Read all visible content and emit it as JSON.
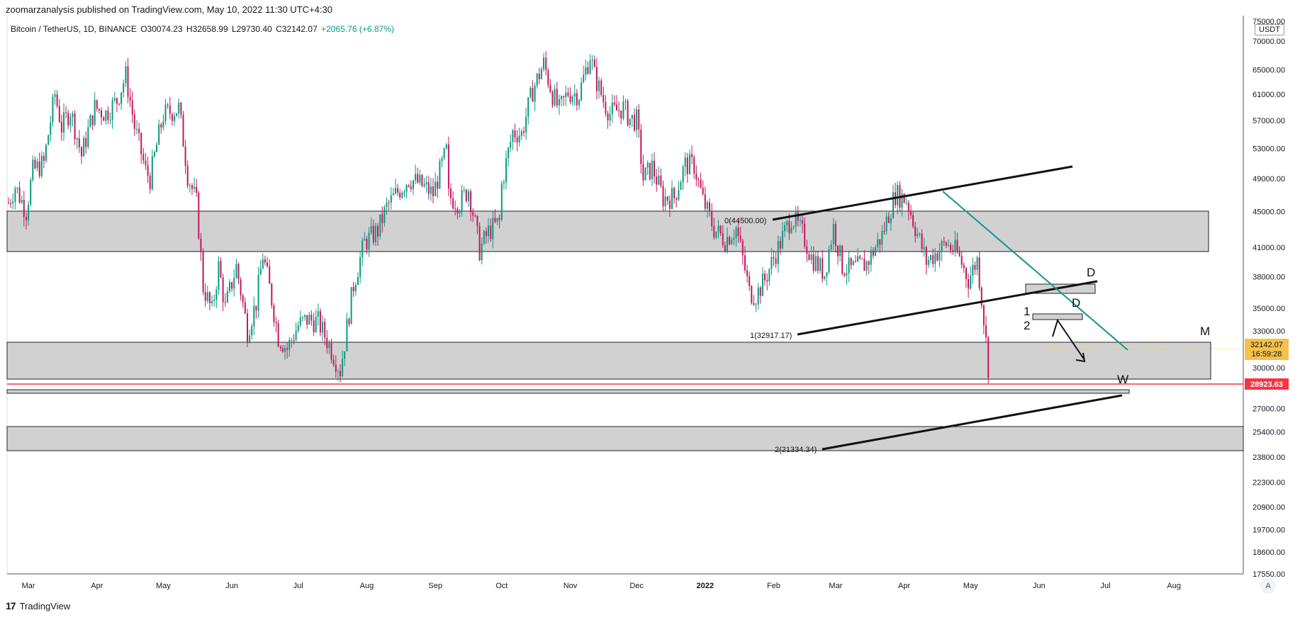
{
  "header": {
    "publisher": "zoomarzanalysis published on TradingView.com, May 10, 2022 11:30 UTC+4:30"
  },
  "legend": {
    "symbol": "Bitcoin / TetherUS, 1D, BINANCE",
    "open": "O30074.23",
    "high": "H32658.99",
    "low": "L29730.40",
    "close": "C32142.07",
    "change": "+2065.76 (+6.87%)"
  },
  "footer": {
    "brand": "TradingView",
    "logo_text": "17"
  },
  "price_axis": {
    "unit": "USDT",
    "scale_button": "A",
    "top_label": "75000.00",
    "bottom_label": "17550.00",
    "ticks": [
      "70000.00",
      "65000.00",
      "61000.00",
      "57000.00",
      "53000.00",
      "49000.00",
      "45000.00",
      "41000.00",
      "38000.00",
      "35000.00",
      "33000.00",
      "30000.00",
      "27000.00",
      "25400.00",
      "23800.00",
      "22300.00",
      "20900.00",
      "19700.00",
      "18600.00"
    ],
    "current_price": "32142.07",
    "countdown": "16:59:28",
    "line_price": "28923.63"
  },
  "colors": {
    "up": "#089981",
    "down": "#c2185b",
    "zone_fill": "#d1d1d1",
    "red_line": "#f23645",
    "trend_teal": "#13988a",
    "price_tag": "#f5c14a"
  },
  "chart_data": {
    "type": "candlestick",
    "x_labels": [
      "Mar",
      "Apr",
      "May",
      "Jun",
      "Jul",
      "Aug",
      "Sep",
      "Oct",
      "Nov",
      "Dec",
      "2022",
      "Feb",
      "Mar",
      "Apr",
      "May",
      "Jun",
      "Jul",
      "Aug"
    ],
    "y_scale": "log",
    "ylim": [
      17550,
      75000
    ],
    "close_path": [
      [
        "2021-02-20",
        46000
      ],
      [
        "2021-02-23",
        48000
      ],
      [
        "2021-02-28",
        45000
      ],
      [
        "2021-03-03",
        50000
      ],
      [
        "2021-03-08",
        51000
      ],
      [
        "2021-03-13",
        61000
      ],
      [
        "2021-03-16",
        56000
      ],
      [
        "2021-03-20",
        58500
      ],
      [
        "2021-03-25",
        52000
      ],
      [
        "2021-03-31",
        58900
      ],
      [
        "2021-04-05",
        58000
      ],
      [
        "2021-04-10",
        60000
      ],
      [
        "2021-04-14",
        64000
      ],
      [
        "2021-04-18",
        56000
      ],
      [
        "2021-04-23",
        50000
      ],
      [
        "2021-04-25",
        49000
      ],
      [
        "2021-05-01",
        57800
      ],
      [
        "2021-05-08",
        58800
      ],
      [
        "2021-05-12",
        49500
      ],
      [
        "2021-05-16",
        46000
      ],
      [
        "2021-05-19",
        37000
      ],
      [
        "2021-05-23",
        34700
      ],
      [
        "2021-05-26",
        39000
      ],
      [
        "2021-05-29",
        35000
      ],
      [
        "2021-06-03",
        39000
      ],
      [
        "2021-06-08",
        33000
      ],
      [
        "2021-06-12",
        35500
      ],
      [
        "2021-06-15",
        40200
      ],
      [
        "2021-06-22",
        32500
      ],
      [
        "2021-06-26",
        31500
      ],
      [
        "2021-07-01",
        33500
      ],
      [
        "2021-07-05",
        34000
      ],
      [
        "2021-07-10",
        33800
      ],
      [
        "2021-07-15",
        31800
      ],
      [
        "2021-07-20",
        29800
      ],
      [
        "2021-07-22",
        32000
      ],
      [
        "2021-07-26",
        37200
      ],
      [
        "2021-07-31",
        41500
      ],
      [
        "2021-08-06",
        42800
      ],
      [
        "2021-08-10",
        45500
      ],
      [
        "2021-08-14",
        47000
      ],
      [
        "2021-08-20",
        49000
      ],
      [
        "2021-08-24",
        48500
      ],
      [
        "2021-08-31",
        47100
      ],
      [
        "2021-09-06",
        52600
      ],
      [
        "2021-09-07",
        46800
      ],
      [
        "2021-09-12",
        46000
      ],
      [
        "2021-09-16",
        47700
      ],
      [
        "2021-09-21",
        40700
      ],
      [
        "2021-09-25",
        42700
      ],
      [
        "2021-09-30",
        43800
      ],
      [
        "2021-10-01",
        48200
      ],
      [
        "2021-10-06",
        55300
      ],
      [
        "2021-10-10",
        55000
      ],
      [
        "2021-10-15",
        61600
      ],
      [
        "2021-10-20",
        66000
      ],
      [
        "2021-10-24",
        61000
      ],
      [
        "2021-10-27",
        58500
      ],
      [
        "2021-10-31",
        61300
      ],
      [
        "2021-11-05",
        61000
      ],
      [
        "2021-11-10",
        67500
      ],
      [
        "2021-11-12",
        64000
      ],
      [
        "2021-11-16",
        60000
      ],
      [
        "2021-11-19",
        58000
      ],
      [
        "2021-11-25",
        58900
      ],
      [
        "2021-11-28",
        57200
      ],
      [
        "2021-12-01",
        57000
      ],
      [
        "2021-12-04",
        49000
      ],
      [
        "2021-12-08",
        50500
      ],
      [
        "2021-12-13",
        46600
      ],
      [
        "2021-12-18",
        46700
      ],
      [
        "2021-12-23",
        50800
      ],
      [
        "2021-12-27",
        50700
      ],
      [
        "2021-12-31",
        46300
      ],
      [
        "2022-01-05",
        43000
      ],
      [
        "2022-01-10",
        41800
      ],
      [
        "2022-01-15",
        43100
      ],
      [
        "2022-01-21",
        36500
      ],
      [
        "2022-01-24",
        36200
      ],
      [
        "2022-01-28",
        37700
      ],
      [
        "2022-02-04",
        41500
      ],
      [
        "2022-02-09",
        44400
      ],
      [
        "2022-02-14",
        42500
      ],
      [
        "2022-02-18",
        40000
      ],
      [
        "2022-02-24",
        38300
      ],
      [
        "2022-02-28",
        43200
      ],
      [
        "2022-03-04",
        39000
      ],
      [
        "2022-03-08",
        38700
      ],
      [
        "2022-03-15",
        39300
      ],
      [
        "2022-03-22",
        42300
      ],
      [
        "2022-03-28",
        47100
      ],
      [
        "2022-04-02",
        46400
      ],
      [
        "2022-04-06",
        43200
      ],
      [
        "2022-04-11",
        39500
      ],
      [
        "2022-04-16",
        40500
      ],
      [
        "2022-04-20",
        41400
      ],
      [
        "2022-04-25",
        40400
      ],
      [
        "2022-04-30",
        37700
      ],
      [
        "2022-05-04",
        39700
      ],
      [
        "2022-05-06",
        36000
      ],
      [
        "2022-05-09",
        30100
      ],
      [
        "2022-05-10",
        32142
      ]
    ],
    "zones": [
      {
        "low": 41000,
        "high": 45900
      },
      {
        "low": 29000,
        "high": 33000
      },
      {
        "low": 28500,
        "high": 28700
      },
      {
        "low": 24200,
        "high": 25600
      },
      {
        "low": 34500,
        "high": 34900
      },
      {
        "low": 36800,
        "high": 37600
      }
    ],
    "annotations": [
      {
        "text": "0(44500.00)"
      },
      {
        "text": "1(32917.17)"
      },
      {
        "text": "2(21334.34)"
      },
      {
        "text": "D"
      },
      {
        "text": "D"
      },
      {
        "text": "M"
      },
      {
        "text": "W"
      },
      {
        "text": "1"
      },
      {
        "text": "2"
      }
    ]
  }
}
